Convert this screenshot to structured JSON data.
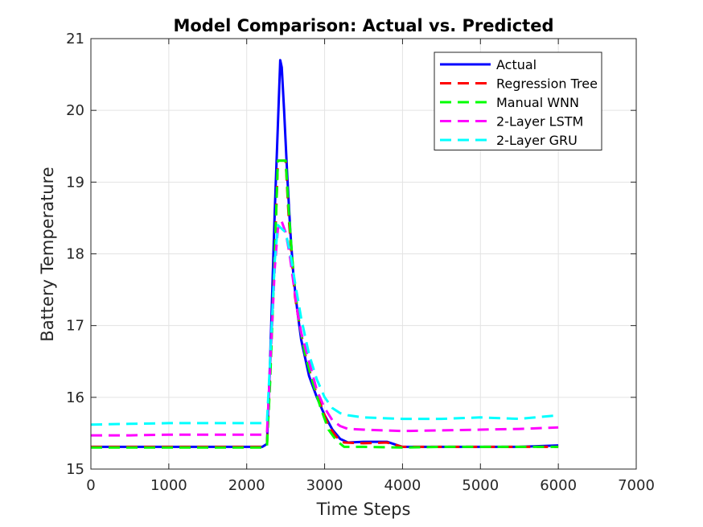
{
  "chart_data": {
    "type": "line",
    "title": "Model Comparison: Actual vs. Predicted",
    "xlabel": "Time Steps",
    "ylabel": "Battery Temperature",
    "xlim": [
      0,
      7000
    ],
    "ylim": [
      15,
      21
    ],
    "xticks": [
      0,
      1000,
      2000,
      3000,
      4000,
      5000,
      6000,
      7000
    ],
    "yticks": [
      15,
      16,
      17,
      18,
      19,
      20,
      21
    ],
    "grid": true,
    "legend_position": "top-right",
    "series": [
      {
        "name": "Actual",
        "color": "#0000ff",
        "dash": "solid",
        "x": [
          0,
          2200,
          2260,
          2300,
          2360,
          2400,
          2430,
          2450,
          2480,
          2520,
          2560,
          2600,
          2650,
          2700,
          2800,
          2900,
          3000,
          3100,
          3200,
          3300,
          3500,
          3800,
          4000,
          4500,
          5000,
          5500,
          6000
        ],
        "y": [
          15.31,
          15.31,
          15.35,
          16.5,
          18.6,
          19.8,
          20.7,
          20.6,
          20.0,
          19.1,
          18.3,
          17.7,
          17.2,
          16.8,
          16.3,
          16.0,
          15.75,
          15.55,
          15.42,
          15.37,
          15.38,
          15.38,
          15.31,
          15.31,
          15.31,
          15.31,
          15.33
        ]
      },
      {
        "name": "Regression Tree",
        "color": "#ff0000",
        "dash": "dashed",
        "x": [
          0,
          2200,
          2260,
          2300,
          2360,
          2400,
          2420,
          2500,
          2540,
          2580,
          2620,
          2680,
          2750,
          2850,
          2950,
          3050,
          3150,
          3250,
          3500,
          3800,
          4000,
          4200,
          4500,
          5000,
          5500,
          6000
        ],
        "y": [
          15.31,
          15.31,
          15.33,
          16.3,
          18.0,
          19.3,
          19.3,
          19.3,
          18.5,
          17.9,
          17.4,
          17.0,
          16.6,
          16.2,
          15.9,
          15.6,
          15.45,
          15.37,
          15.36,
          15.37,
          15.31,
          15.31,
          15.31,
          15.31,
          15.31,
          15.31
        ]
      },
      {
        "name": "Manual WNN",
        "color": "#00ff00",
        "dash": "dashed",
        "x": [
          0,
          2200,
          2260,
          2300,
          2360,
          2400,
          2500,
          2540,
          2580,
          2620,
          2680,
          2750,
          2850,
          2950,
          3050,
          3150,
          3250,
          3500,
          4000,
          4500,
          5000,
          5500,
          6000
        ],
        "y": [
          15.3,
          15.3,
          15.32,
          16.2,
          18.0,
          19.3,
          19.3,
          18.6,
          18.0,
          17.5,
          17.0,
          16.6,
          16.2,
          15.85,
          15.55,
          15.4,
          15.31,
          15.31,
          15.3,
          15.31,
          15.31,
          15.31,
          15.31
        ]
      },
      {
        "name": "2-Layer LSTM",
        "color": "#ff00ff",
        "dash": "dashed",
        "x": [
          0,
          500,
          1000,
          1500,
          2200,
          2260,
          2300,
          2360,
          2400,
          2450,
          2500,
          2550,
          2600,
          2650,
          2700,
          2800,
          2900,
          3000,
          3100,
          3200,
          3300,
          3500,
          4000,
          4500,
          5000,
          5500,
          6000
        ],
        "y": [
          15.47,
          15.47,
          15.48,
          15.48,
          15.48,
          15.5,
          16.4,
          17.8,
          18.35,
          18.45,
          18.3,
          18.0,
          17.6,
          17.2,
          16.9,
          16.5,
          16.1,
          15.85,
          15.68,
          15.6,
          15.56,
          15.55,
          15.53,
          15.54,
          15.55,
          15.56,
          15.58
        ]
      },
      {
        "name": "2-Layer GRU",
        "color": "#00ffff",
        "dash": "dashed",
        "x": [
          0,
          500,
          1000,
          1500,
          2200,
          2260,
          2300,
          2360,
          2400,
          2450,
          2500,
          2560,
          2620,
          2700,
          2800,
          2900,
          3000,
          3100,
          3200,
          3300,
          3500,
          4000,
          4500,
          5000,
          5500,
          6000
        ],
        "y": [
          15.62,
          15.63,
          15.64,
          15.64,
          15.64,
          15.66,
          16.5,
          17.9,
          18.4,
          18.35,
          18.3,
          18.0,
          17.6,
          17.1,
          16.6,
          16.25,
          16.0,
          15.85,
          15.78,
          15.75,
          15.72,
          15.7,
          15.7,
          15.72,
          15.7,
          15.75
        ]
      }
    ]
  }
}
